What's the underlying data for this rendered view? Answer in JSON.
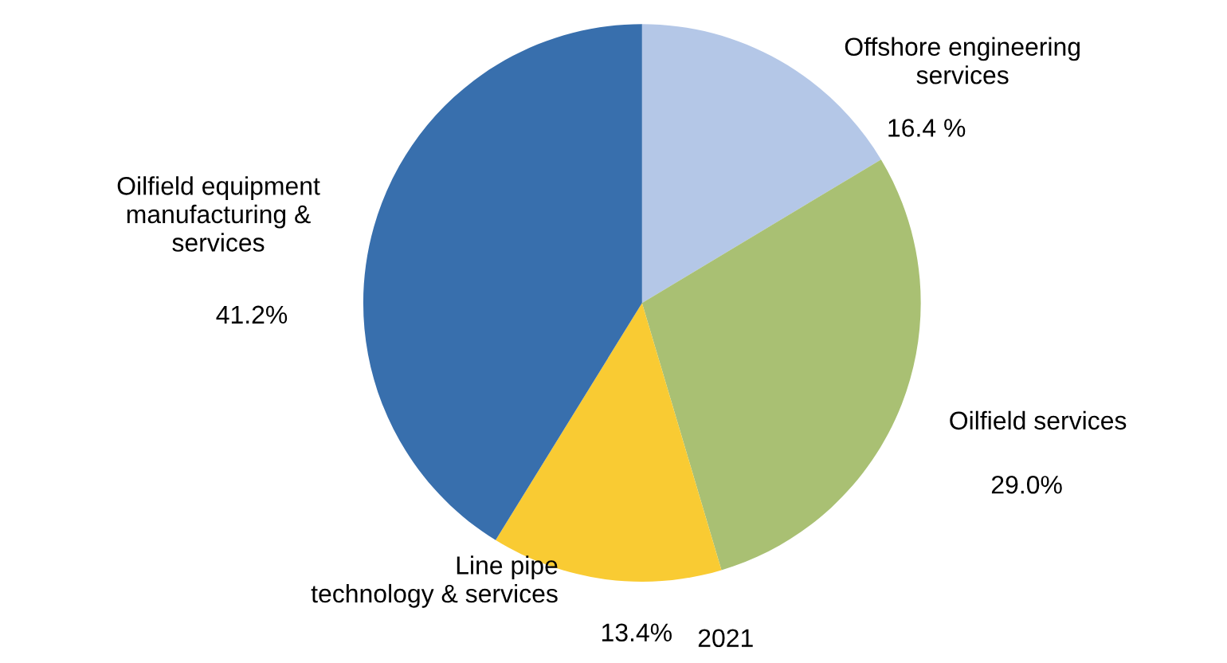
{
  "chart_data": {
    "type": "pie",
    "title": "2021",
    "categories": [
      "Offshore engineering\nservices",
      "Oilfield services",
      "Line pipe\ntechnology & services",
      "Oilfield equipment\nmanufacturing &\nservices"
    ],
    "values": [
      16.4,
      29.0,
      13.4,
      41.2
    ],
    "value_labels": [
      "16.4 %",
      "29.0%",
      "13.4%",
      "41.2%"
    ],
    "colors": [
      "#b4c7e7",
      "#a9c073",
      "#f9cb33",
      "#386fad"
    ],
    "legend": false
  }
}
